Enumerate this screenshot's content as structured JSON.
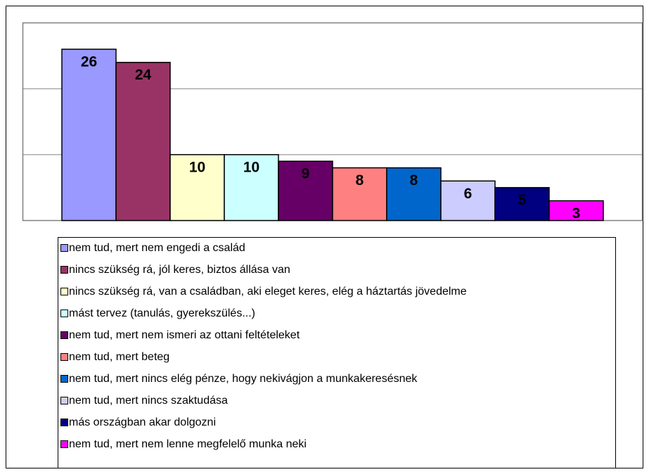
{
  "chart_data": {
    "type": "bar",
    "series": [
      {
        "name": "nem tud, mert nem engedi a család",
        "color": "#9999FF",
        "values": [
          26
        ]
      },
      {
        "name": "nincs szükség rá, jól keres, biztos állása van",
        "color": "#993366",
        "values": [
          24
        ]
      },
      {
        "name": "nincs szükség rá, van a családban, aki eleget keres, elég a háztartás jövedelme",
        "color": "#FFFFCC",
        "values": [
          10
        ]
      },
      {
        "name": "mást tervez (tanulás, gyerekszülés...)",
        "color": "#CCFFFF",
        "values": [
          10
        ]
      },
      {
        "name": "nem tud, mert nem ismeri az ottani feltételeket",
        "color": "#660066",
        "values": [
          9
        ]
      },
      {
        "name": "nem tud, mert beteg",
        "color": "#FF8080",
        "values": [
          8
        ]
      },
      {
        "name": "nem tud, mert nincs elég pénze, hogy nekivágjon a munkakeresésnek",
        "color": "#0066CC",
        "values": [
          8
        ]
      },
      {
        "name": "nem tud, mert nincs szaktudása",
        "color": "#CCCCFF",
        "values": [
          6
        ]
      },
      {
        "name": "más országban akar dolgozni",
        "color": "#000080",
        "values": [
          5
        ]
      },
      {
        "name": "nem tud, mert nem lenne megfelelő munka neki",
        "color": "#FF00FF",
        "values": [
          3
        ]
      }
    ],
    "ylim": [
      0,
      30
    ],
    "yticks": [
      0,
      10,
      20,
      30
    ],
    "grid": true
  }
}
